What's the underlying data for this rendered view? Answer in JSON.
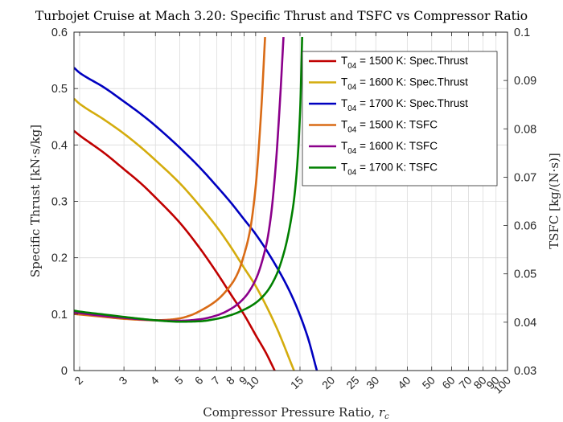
{
  "chart_data": {
    "type": "line",
    "title": "Turbojet Cruise at Mach 3.20: Specific Thrust and TSFC vs Compressor Ratio",
    "xlabel": "Compressor Pressure Ratio, ",
    "xlabel_var": "r",
    "xlabel_sub": "c",
    "ylabel_left": "Specific Thrust [kN·s/kg]",
    "ylabel_right": "TSFC [kg/(N·s)]",
    "x_scale": "log",
    "xlim": [
      1.9,
      100
    ],
    "ylim_left": [
      0,
      0.6
    ],
    "ylim_right": [
      0.03,
      0.1
    ],
    "grid": true,
    "legend_position": "top-right",
    "x_ticks": [
      2,
      3,
      4,
      5,
      6,
      7,
      8,
      9,
      10,
      15,
      20,
      25,
      30,
      40,
      50,
      60,
      70,
      80,
      90,
      100
    ],
    "y_ticks_left": [
      "0",
      "0.1",
      "0.2",
      "0.3",
      "0.4",
      "0.5",
      "0.6"
    ],
    "y_ticks_right": [
      "0.03",
      "0.04",
      "0.05",
      "0.06",
      "0.07",
      "0.08",
      "0.09",
      "0.1"
    ],
    "series": [
      {
        "name": "T04 = 1500 K: Spec.Thrust",
        "label_main": "T",
        "label_sub": "04",
        "label_rest": " = 1500 K: Spec.Thrust",
        "axis": "left",
        "color": "#c00000",
        "x": [
          1.9,
          2,
          2.5,
          3,
          3.5,
          4,
          5,
          6,
          7,
          8,
          9,
          10,
          11,
          11.9
        ],
        "y": [
          0.425,
          0.417,
          0.386,
          0.357,
          0.332,
          0.307,
          0.262,
          0.217,
          0.174,
          0.134,
          0.099,
          0.063,
          0.031,
          0.0
        ]
      },
      {
        "name": "T04 = 1600 K: Spec.Thrust",
        "label_main": "T",
        "label_sub": "04",
        "label_rest": " = 1600 K: Spec.Thrust",
        "axis": "left",
        "color": "#d4ac0d",
        "x": [
          1.9,
          2,
          2.5,
          3,
          3.5,
          4,
          5,
          6,
          7,
          8,
          9,
          10,
          12,
          14.2
        ],
        "y": [
          0.482,
          0.473,
          0.445,
          0.42,
          0.396,
          0.373,
          0.332,
          0.292,
          0.255,
          0.218,
          0.182,
          0.15,
          0.08,
          0.0
        ]
      },
      {
        "name": "T04 = 1700 K: Spec.Thrust",
        "label_main": "T",
        "label_sub": "04",
        "label_rest": " = 1700 K: Spec.Thrust",
        "axis": "left",
        "color": "#0000c0",
        "x": [
          1.9,
          2,
          2.5,
          3,
          3.5,
          4,
          5,
          6,
          7,
          8,
          9,
          10,
          12,
          14,
          16,
          17.5
        ],
        "y": [
          0.537,
          0.528,
          0.502,
          0.477,
          0.455,
          0.434,
          0.395,
          0.36,
          0.327,
          0.297,
          0.268,
          0.242,
          0.187,
          0.13,
          0.063,
          0.0
        ]
      },
      {
        "name": "T04 = 1500 K: TSFC",
        "label_main": "T",
        "label_sub": "04",
        "label_rest": " = 1500 K: TSFC",
        "axis": "right",
        "color": "#d96b16",
        "x": [
          1.9,
          2,
          2.5,
          3,
          3.5,
          4,
          4.5,
          5,
          5.5,
          6,
          7,
          8,
          8.5,
          9,
          9.5,
          10,
          10.5,
          10.9
        ],
        "y": [
          0.0417,
          0.0416,
          0.0411,
          0.0407,
          0.0405,
          0.0404,
          0.0405,
          0.0408,
          0.0414,
          0.0423,
          0.0445,
          0.0478,
          0.0502,
          0.054,
          0.059,
          0.068,
          0.083,
          0.099
        ]
      },
      {
        "name": "T04 = 1600 K: TSFC",
        "label_main": "T",
        "label_sub": "04",
        "label_rest": " = 1600 K: TSFC",
        "axis": "right",
        "color": "#8b008b",
        "x": [
          1.9,
          2,
          2.5,
          3,
          3.5,
          4,
          4.5,
          5,
          6,
          7,
          8,
          9,
          10,
          11,
          11.5,
          12,
          12.5,
          12.9
        ],
        "y": [
          0.0421,
          0.0419,
          0.0413,
          0.0409,
          0.0406,
          0.0404,
          0.0403,
          0.0403,
          0.0406,
          0.0414,
          0.0428,
          0.045,
          0.0488,
          0.0558,
          0.062,
          0.072,
          0.086,
          0.099
        ]
      },
      {
        "name": "T04 = 1700 K: TSFC",
        "label_main": "T",
        "label_sub": "04",
        "label_rest": " = 1700 K: TSFC",
        "axis": "right",
        "color": "#008000",
        "x": [
          1.9,
          2,
          2.5,
          3,
          3.5,
          4,
          4.5,
          5,
          6,
          7,
          8,
          9,
          10,
          11,
          12,
          13,
          14,
          14.5,
          15,
          15.3
        ],
        "y": [
          0.0424,
          0.0422,
          0.0416,
          0.0411,
          0.0407,
          0.0404,
          0.0402,
          0.0401,
          0.0402,
          0.0407,
          0.0415,
          0.0426,
          0.044,
          0.0461,
          0.0494,
          0.0547,
          0.063,
          0.07,
          0.083,
          0.099
        ]
      }
    ]
  }
}
